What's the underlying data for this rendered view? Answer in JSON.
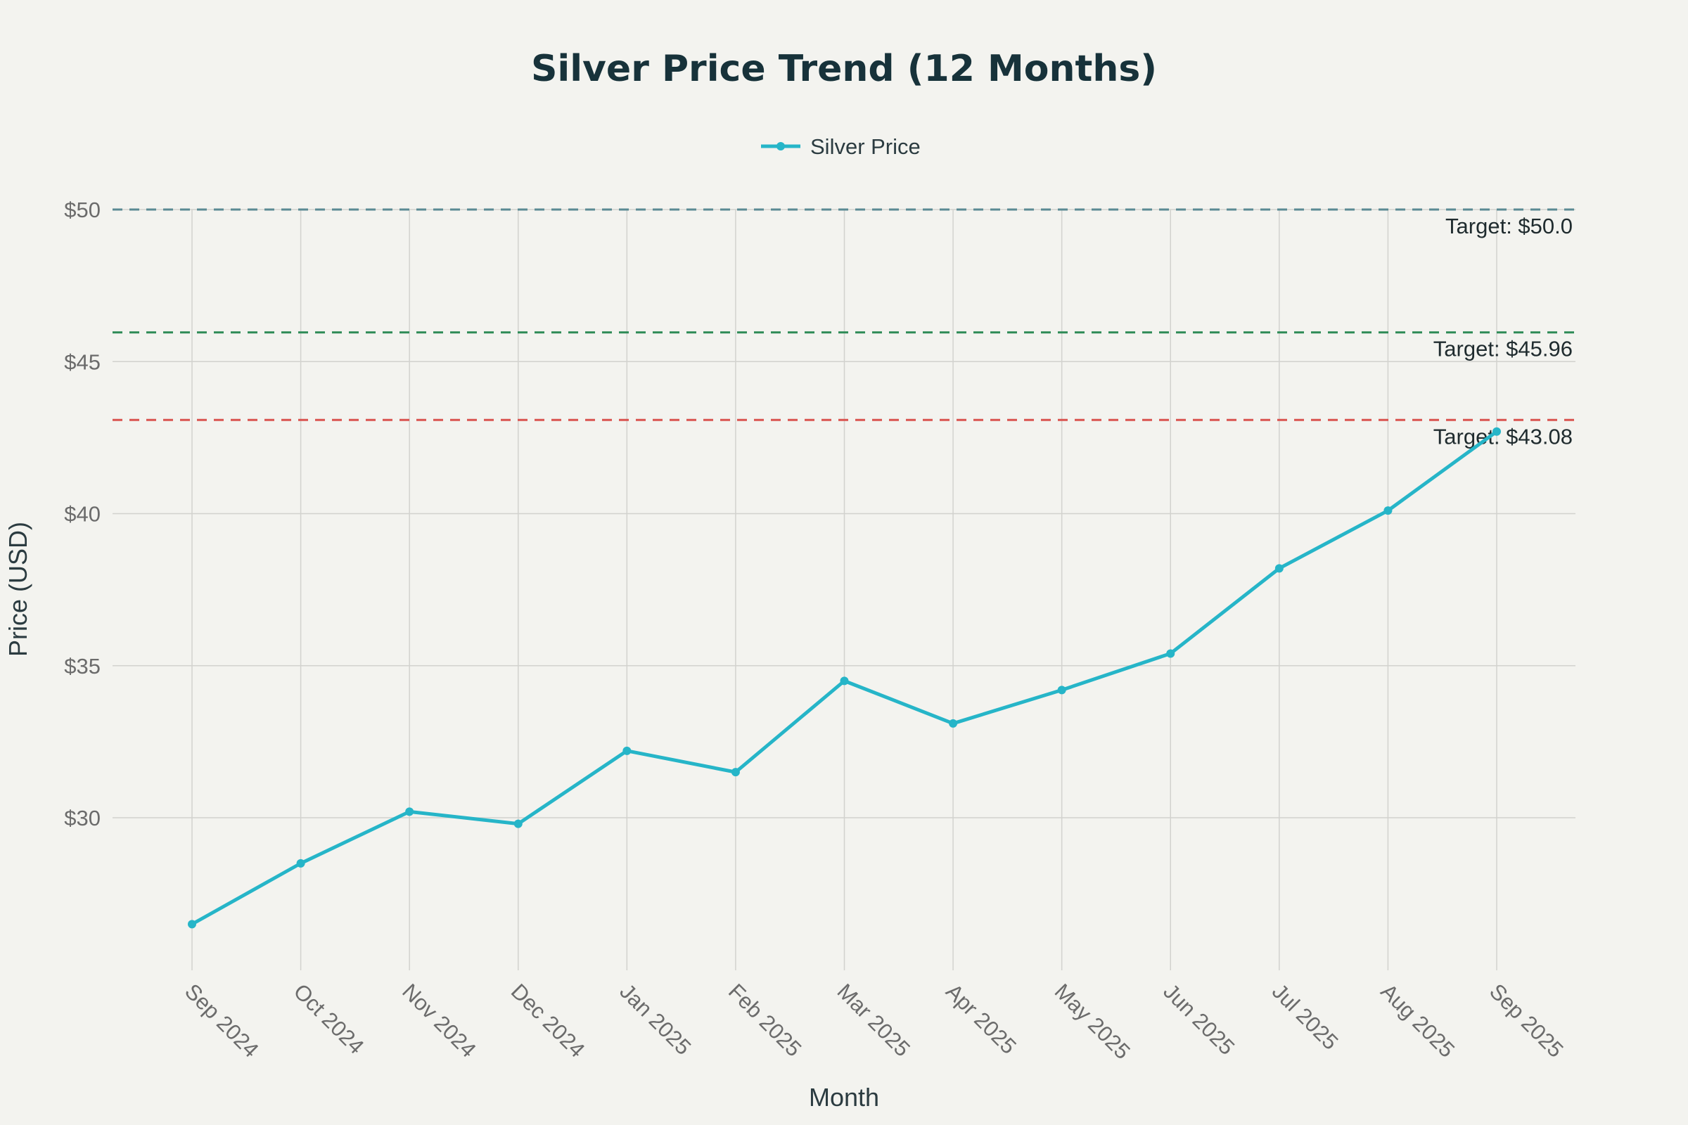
{
  "chart_data": {
    "type": "line",
    "title": "Silver Price Trend (12 Months)",
    "xlabel": "Month",
    "ylabel": "Price (USD)",
    "categories": [
      "Sep 2024",
      "Oct 2024",
      "Nov 2024",
      "Dec 2024",
      "Jan 2025",
      "Feb 2025",
      "Mar 2025",
      "Apr 2025",
      "May 2025",
      "Jun 2025",
      "Jul 2025",
      "Aug 2025",
      "Sep 2025"
    ],
    "series": [
      {
        "name": "Silver Price",
        "color": "#26b5c8",
        "values": [
          26.5,
          28.5,
          30.2,
          29.8,
          32.2,
          31.5,
          34.5,
          33.1,
          34.2,
          35.4,
          38.2,
          40.1,
          42.7
        ]
      }
    ],
    "y_ticks": [
      {
        "value": 30,
        "label": "$30"
      },
      {
        "value": 35,
        "label": "$35"
      },
      {
        "value": 40,
        "label": "$40"
      },
      {
        "value": 45,
        "label": "$45"
      },
      {
        "value": 50,
        "label": "$50"
      }
    ],
    "ylim": [
      25,
      50
    ],
    "targets": [
      {
        "value": 50.0,
        "label": "Target: $50.0",
        "color": "#5a8a93"
      },
      {
        "value": 45.96,
        "label": "Target: $45.96",
        "color": "#2e8b57"
      },
      {
        "value": 43.08,
        "label": "Target: $43.08",
        "color": "#d9534f"
      }
    ],
    "legend_position": "top-center",
    "grid": true
  }
}
